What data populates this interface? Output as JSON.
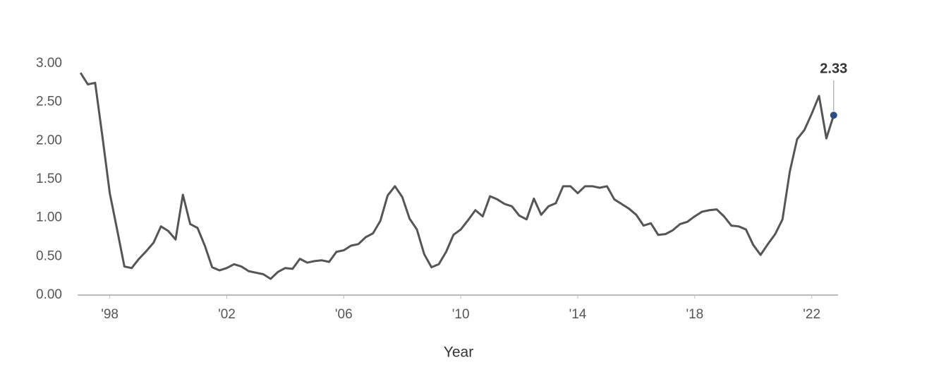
{
  "chart_data": {
    "type": "line",
    "xlabel": "Year",
    "x": [
      1997,
      1997.25,
      1997.5,
      1997.75,
      1998,
      1998.25,
      1998.5,
      1998.75,
      1999,
      1999.25,
      1999.5,
      1999.75,
      2000,
      2000.25,
      2000.5,
      2000.75,
      2001,
      2001.25,
      2001.5,
      2001.75,
      2002,
      2002.25,
      2002.5,
      2002.75,
      2003,
      2003.25,
      2003.5,
      2003.75,
      2004,
      2004.25,
      2004.5,
      2004.75,
      2005,
      2005.25,
      2005.5,
      2005.75,
      2006,
      2006.25,
      2006.5,
      2006.75,
      2007,
      2007.25,
      2007.5,
      2007.75,
      2008,
      2008.25,
      2008.5,
      2008.75,
      2009,
      2009.25,
      2009.5,
      2009.75,
      2010,
      2010.25,
      2010.5,
      2010.75,
      2011,
      2011.25,
      2011.5,
      2011.75,
      2012,
      2012.25,
      2012.5,
      2012.75,
      2013,
      2013.25,
      2013.5,
      2013.75,
      2014,
      2014.25,
      2014.5,
      2014.75,
      2015,
      2015.25,
      2015.5,
      2015.75,
      2016,
      2016.25,
      2016.5,
      2016.75,
      2017,
      2017.25,
      2017.5,
      2017.75,
      2018,
      2018.25,
      2018.5,
      2018.75,
      2019,
      2019.25,
      2019.5,
      2019.75,
      2020,
      2020.25,
      2020.5,
      2020.75,
      2021,
      2021.25,
      2021.5,
      2021.75,
      2022,
      2022.25,
      2022.5,
      2022.75
    ],
    "series": [
      {
        "color": "#555555",
        "values": [
          2.88,
          2.73,
          2.75,
          2.05,
          1.32,
          0.85,
          0.37,
          0.35,
          0.47,
          0.57,
          0.68,
          0.89,
          0.83,
          0.72,
          1.3,
          0.92,
          0.87,
          0.64,
          0.36,
          0.32,
          0.35,
          0.4,
          0.37,
          0.31,
          0.29,
          0.27,
          0.21,
          0.3,
          0.35,
          0.34,
          0.47,
          0.42,
          0.44,
          0.45,
          0.43,
          0.56,
          0.58,
          0.64,
          0.66,
          0.75,
          0.8,
          0.96,
          1.29,
          1.41,
          1.27,
          0.99,
          0.85,
          0.53,
          0.36,
          0.4,
          0.56,
          0.78,
          0.85,
          0.97,
          1.1,
          1.02,
          1.28,
          1.24,
          1.18,
          1.15,
          1.03,
          0.98,
          1.25,
          1.04,
          1.15,
          1.19,
          1.41,
          1.41,
          1.32,
          1.41,
          1.41,
          1.39,
          1.41,
          1.24,
          1.18,
          1.12,
          1.04,
          0.9,
          0.93,
          0.78,
          0.79,
          0.84,
          0.92,
          0.95,
          1.02,
          1.08,
          1.1,
          1.11,
          1.02,
          0.9,
          0.89,
          0.85,
          0.65,
          0.52,
          0.66,
          0.79,
          0.98,
          1.6,
          2.02,
          2.14,
          2.35,
          2.58,
          2.03,
          2.33
        ]
      }
    ],
    "annotation": {
      "text": "2.33",
      "color": "#2a4a8a"
    },
    "xlim": [
      1996.9,
      2022.9
    ],
    "xticks": [
      {
        "value": 1998,
        "label": "'98"
      },
      {
        "value": 2002,
        "label": "'02"
      },
      {
        "value": 2006,
        "label": "'06"
      },
      {
        "value": 2010,
        "label": "'10"
      },
      {
        "value": 2014,
        "label": "'14"
      },
      {
        "value": 2018,
        "label": "'18"
      },
      {
        "value": 2022,
        "label": "'22"
      }
    ],
    "ylim": [
      0,
      3
    ],
    "yticks": [
      {
        "value": 0,
        "label": "0.00"
      },
      {
        "value": 0.5,
        "label": "0.50"
      },
      {
        "value": 1,
        "label": "1.00"
      },
      {
        "value": 1.5,
        "label": "1.50"
      },
      {
        "value": 2,
        "label": "2.00"
      },
      {
        "value": 2.5,
        "label": "2.50"
      },
      {
        "value": 3,
        "label": "3.00"
      }
    ],
    "grid": false
  }
}
